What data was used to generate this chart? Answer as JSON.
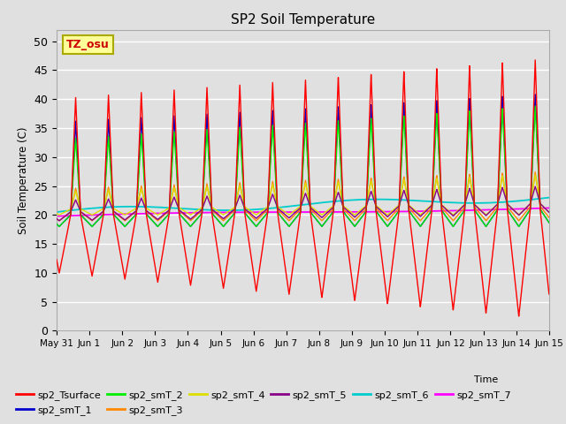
{
  "title": "SP2 Soil Temperature",
  "ylabel": "Soil Temperature (C)",
  "xlabel": "Time",
  "tz_label": "TZ_osu",
  "ylim": [
    0,
    52
  ],
  "yticks": [
    0,
    5,
    10,
    15,
    20,
    25,
    30,
    35,
    40,
    45,
    50
  ],
  "x_tick_labels": [
    "May 31",
    "Jun 1",
    "Jun 2",
    "Jun 3",
    "Jun 4",
    "Jun 5",
    "Jun 6",
    "Jun 7",
    "Jun 8",
    "Jun 9",
    "Jun 10",
    "Jun 11",
    "Jun 12",
    "Jun 13",
    "Jun 14",
    "Jun 15"
  ],
  "series_colors": {
    "sp2_Tsurface": "#ff0000",
    "sp2_smT_1": "#0000cc",
    "sp2_smT_2": "#00ee00",
    "sp2_smT_3": "#ff8800",
    "sp2_smT_4": "#dddd00",
    "sp2_smT_5": "#880088",
    "sp2_smT_6": "#00cccc",
    "sp2_smT_7": "#ff00ff"
  },
  "bg_color": "#e0e0e0",
  "grid_color": "#ffffff",
  "n_days": 15,
  "pts_per_day": 288,
  "figsize": [
    6.4,
    4.8
  ],
  "dpi": 100
}
